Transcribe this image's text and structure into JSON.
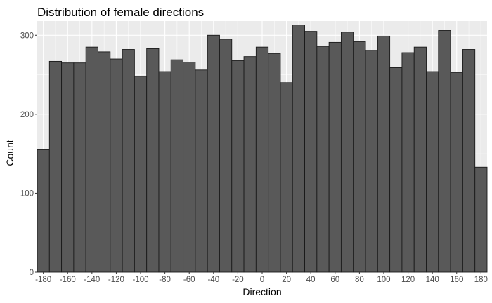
{
  "chart_data": {
    "type": "bar",
    "title": "Distribution of female directions",
    "xlabel": "Direction",
    "ylabel": "Count",
    "bin_width": 10,
    "bin_starts": [
      -185,
      -175,
      -165,
      -155,
      -145,
      -135,
      -125,
      -115,
      -105,
      -95,
      -85,
      -75,
      -65,
      -55,
      -45,
      -35,
      -25,
      -15,
      -5,
      5,
      15,
      25,
      35,
      45,
      55,
      65,
      75,
      85,
      95,
      105,
      115,
      125,
      135,
      145,
      155,
      165,
      175
    ],
    "values": [
      155,
      267,
      265,
      265,
      285,
      279,
      270,
      282,
      248,
      283,
      254,
      269,
      266,
      256,
      300,
      295,
      268,
      273,
      285,
      277,
      240,
      313,
      305,
      286,
      291,
      304,
      292,
      281,
      299,
      259,
      278,
      285,
      254,
      306,
      253,
      282,
      133
    ],
    "xlim": [
      -185,
      185
    ],
    "ylim": [
      0,
      318
    ],
    "x_ticks": [
      "-180",
      "-160",
      "-140",
      "-120",
      "-100",
      "-80",
      "-60",
      "-40",
      "-20",
      "0",
      "20",
      "40",
      "60",
      "80",
      "100",
      "120",
      "140",
      "160",
      "180"
    ],
    "y_ticks": [
      "0",
      "100",
      "200",
      "300"
    ],
    "grid": true,
    "colors": {
      "panel": "#ebebeb",
      "grid_major": "#ffffff",
      "bar_fill": "#595959",
      "bar_stroke": "#1a1a1a",
      "tick_text": "#4d4d4d",
      "tick_mark": "#333333"
    }
  }
}
